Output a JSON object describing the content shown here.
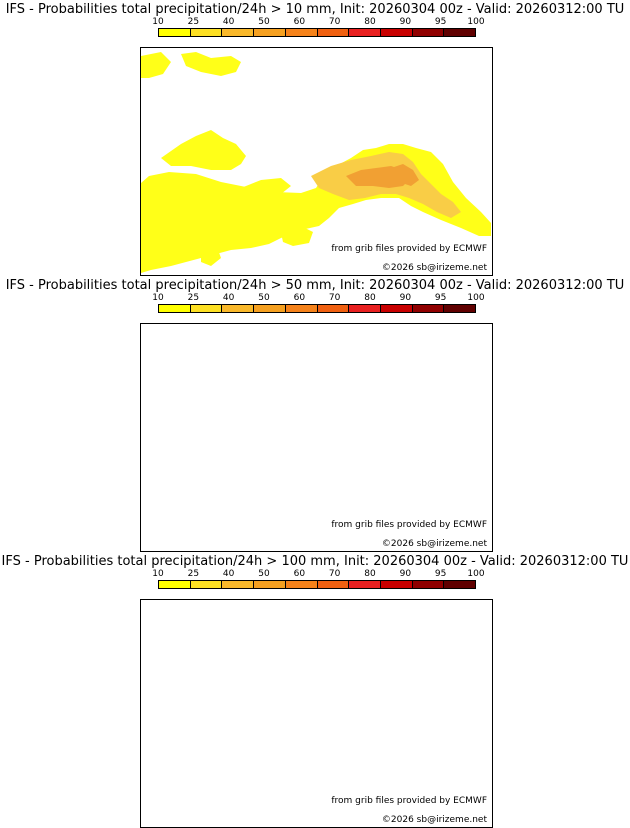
{
  "panels": [
    {
      "title": "IFS - Probabilities total precipitation/24h > 10 mm, Init: 20260304 00z - Valid: 20260312:00 TU",
      "threshold_mm": 10,
      "credit_source": "from grib files provided by ECMWF",
      "credit_copyright": "©2026 sb@irizeme.net"
    },
    {
      "title": "IFS - Probabilities total precipitation/24h > 50 mm, Init: 20260304 00z - Valid: 20260312:00 TU",
      "threshold_mm": 50,
      "credit_source": "from grib files provided by ECMWF",
      "credit_copyright": "©2026 sb@irizeme.net"
    },
    {
      "title": "IFS - Probabilities total precipitation/24h > 100 mm, Init: 20260304 00z - Valid: 20260312:00 TU",
      "threshold_mm": 100,
      "credit_source": "from grib files provided by ECMWF",
      "credit_copyright": "©2026 sb@irizeme.net"
    }
  ],
  "legend": {
    "ticks": [
      "10",
      "25",
      "40",
      "50",
      "60",
      "70",
      "80",
      "90",
      "95",
      "100"
    ],
    "colors": [
      "#ffff00",
      "#fde023",
      "#f9b82a",
      "#f5a020",
      "#f5821a",
      "#f06010",
      "#e82020",
      "#c80000",
      "#900000",
      "#600000"
    ]
  },
  "colors": {
    "coastline": "#000000",
    "borders": "#b4b4b4",
    "rivers": "#3232dc",
    "prob_low": "#ffff00",
    "prob_mid": "#f9c832",
    "prob_high": "#f0961e"
  }
}
